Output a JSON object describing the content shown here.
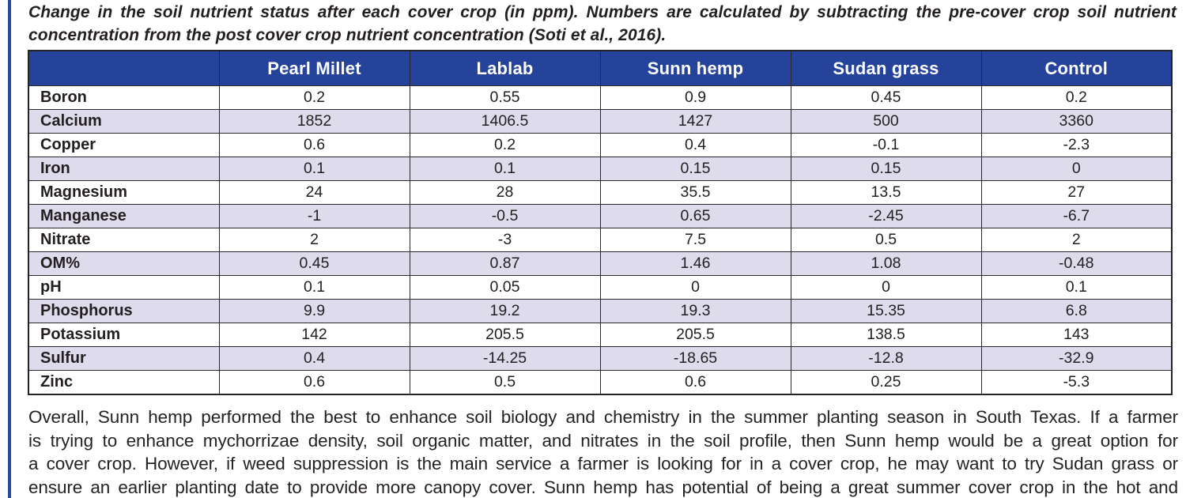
{
  "caption": {
    "lines": [
      "Change in the soil nutrient status after each cover crop (in ppm). Numbers are calculated by subtracting the pre-cover crop soil nutrient",
      "concentration from the post cover crop nutrient concentration (Soti et al., 2016)."
    ]
  },
  "table": {
    "columns": [
      "",
      "Pearl Millet",
      "Lablab",
      "Sunn hemp",
      "Sudan grass",
      "Control"
    ],
    "rows": [
      {
        "label": "Boron",
        "values": [
          "0.2",
          "0.55",
          "0.9",
          "0.45",
          "0.2"
        ]
      },
      {
        "label": "Calcium",
        "values": [
          "1852",
          "1406.5",
          "1427",
          "500",
          "3360"
        ]
      },
      {
        "label": "Copper",
        "values": [
          "0.6",
          "0.2",
          "0.4",
          "-0.1",
          "-2.3"
        ]
      },
      {
        "label": "Iron",
        "values": [
          "0.1",
          "0.1",
          "0.15",
          "0.15",
          "0"
        ]
      },
      {
        "label": "Magnesium",
        "values": [
          "24",
          "28",
          "35.5",
          "13.5",
          "27"
        ]
      },
      {
        "label": "Manganese",
        "values": [
          "-1",
          "-0.5",
          "0.65",
          "-2.45",
          "-6.7"
        ]
      },
      {
        "label": "Nitrate",
        "values": [
          "2",
          "-3",
          "7.5",
          "0.5",
          "2"
        ]
      },
      {
        "label": "OM%",
        "values": [
          "0.45",
          "0.87",
          "1.46",
          "1.08",
          "-0.48"
        ]
      },
      {
        "label": "pH",
        "values": [
          "0.1",
          "0.05",
          "0",
          "0",
          "0.1"
        ]
      },
      {
        "label": "Phosphorus",
        "values": [
          "9.9",
          "19.2",
          "19.3",
          "15.35",
          "6.8"
        ]
      },
      {
        "label": "Potassium",
        "values": [
          "142",
          "205.5",
          "205.5",
          "138.5",
          "143"
        ]
      },
      {
        "label": "Sulfur",
        "values": [
          "0.4",
          "-14.25",
          "-18.65",
          "-12.8",
          "-32.9"
        ]
      },
      {
        "label": "Zinc",
        "values": [
          "0.6",
          "0.5",
          "0.6",
          "0.25",
          "-5.3"
        ]
      }
    ]
  },
  "paragraph": {
    "lines": [
      "Overall, Sunn hemp performed the best to enhance soil biology and chemistry in the summer planting season in South Texas. If a farmer",
      "is trying to enhance mychorrizae density, soil organic matter, and nitrates in the soil profile, then Sunn hemp would be a great option for",
      "a cover crop. However, if weed suppression is the main service a farmer is looking for in a cover crop, he may want to try Sudan grass or",
      "ensure an earlier planting date to provide more canopy cover. Sunn hemp has potential of being a great summer cover crop in the hot and"
    ]
  },
  "colors": {
    "header_bg": "#25439b",
    "row_alt_bg": "#dedcec",
    "accent_bar": "#2a48a0",
    "border": "#2b282c",
    "text": "#231f20",
    "header_text": "#ffffff"
  }
}
